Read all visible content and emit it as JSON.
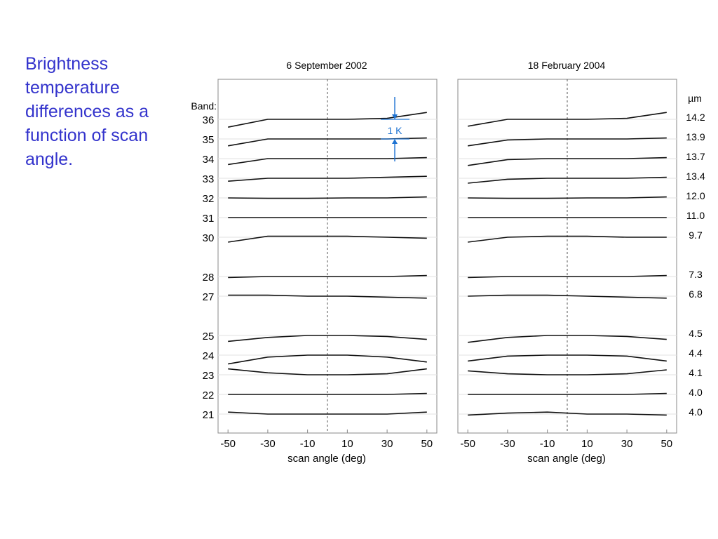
{
  "slide": {
    "title": "Brightness temperature differences as a function of scan angle."
  },
  "chart_data": {
    "type": "line",
    "band_header": "Band:",
    "wavelength_header": "µm",
    "xlabel": "scan angle (deg)",
    "xlim": [
      -55,
      55
    ],
    "xticks": [
      -50,
      -30,
      -10,
      10,
      30,
      50
    ],
    "reference_line_x": 0,
    "scale_bar": {
      "label": "1 K",
      "color": "#1e73d2"
    },
    "bands": [
      {
        "band": "36",
        "wavelength": "14.2"
      },
      {
        "band": "35",
        "wavelength": "13.9"
      },
      {
        "band": "34",
        "wavelength": "13.7"
      },
      {
        "band": "33",
        "wavelength": "13.4"
      },
      {
        "band": "32",
        "wavelength": "12.0"
      },
      {
        "band": "31",
        "wavelength": "11.0"
      },
      {
        "band": "30",
        "wavelength": "9.7"
      },
      {
        "band": "28",
        "wavelength": "7.3"
      },
      {
        "band": "27",
        "wavelength": "6.8"
      },
      {
        "band": "25",
        "wavelength": "4.5"
      },
      {
        "band": "24",
        "wavelength": "4.4"
      },
      {
        "band": "23",
        "wavelength": "4.1"
      },
      {
        "band": "22",
        "wavelength": "4.0"
      },
      {
        "band": "21",
        "wavelength": "4.0"
      }
    ],
    "panels": [
      {
        "title": "6 September 2002",
        "series": [
          {
            "band": "36",
            "x": [
              -50,
              -30,
              -10,
              10,
              30,
              50
            ],
            "y": [
              -0.4,
              0.0,
              0.0,
              0.0,
              0.05,
              0.35
            ]
          },
          {
            "band": "35",
            "x": [
              -50,
              -30,
              -10,
              10,
              30,
              50
            ],
            "y": [
              -0.35,
              0.0,
              0.0,
              0.0,
              0.0,
              0.05
            ]
          },
          {
            "band": "34",
            "x": [
              -50,
              -30,
              -10,
              10,
              30,
              50
            ],
            "y": [
              -0.3,
              0.0,
              0.0,
              0.0,
              0.0,
              0.05
            ]
          },
          {
            "band": "33",
            "x": [
              -50,
              -30,
              -10,
              10,
              30,
              50
            ],
            "y": [
              -0.15,
              0.0,
              0.0,
              0.0,
              0.05,
              0.1
            ]
          },
          {
            "band": "32",
            "x": [
              -50,
              -30,
              -10,
              10,
              30,
              50
            ],
            "y": [
              0.0,
              -0.02,
              -0.02,
              0.0,
              0.0,
              0.05
            ]
          },
          {
            "band": "31",
            "x": [
              -50,
              -30,
              -10,
              10,
              30,
              50
            ],
            "y": [
              0.0,
              0.0,
              0.0,
              0.0,
              0.0,
              0.0
            ]
          },
          {
            "band": "30",
            "x": [
              -50,
              -30,
              -10,
              10,
              30,
              50
            ],
            "y": [
              -0.25,
              0.05,
              0.05,
              0.05,
              0.0,
              -0.05
            ]
          },
          {
            "band": "28",
            "x": [
              -50,
              -30,
              -10,
              10,
              30,
              50
            ],
            "y": [
              -0.05,
              0.0,
              0.0,
              0.0,
              0.0,
              0.05
            ]
          },
          {
            "band": "27",
            "x": [
              -50,
              -30,
              -10,
              10,
              30,
              50
            ],
            "y": [
              0.05,
              0.05,
              0.0,
              0.0,
              -0.05,
              -0.1
            ]
          },
          {
            "band": "25",
            "x": [
              -50,
              -30,
              -10,
              10,
              30,
              50
            ],
            "y": [
              -0.3,
              -0.1,
              0.0,
              0.0,
              -0.05,
              -0.2
            ]
          },
          {
            "band": "24",
            "x": [
              -50,
              -30,
              -10,
              10,
              30,
              50
            ],
            "y": [
              -0.45,
              -0.1,
              0.0,
              0.0,
              -0.1,
              -0.35
            ]
          },
          {
            "band": "23",
            "x": [
              -50,
              -30,
              -10,
              10,
              30,
              50
            ],
            "y": [
              0.3,
              0.1,
              0.0,
              0.0,
              0.05,
              0.3
            ]
          },
          {
            "band": "22",
            "x": [
              -50,
              -30,
              -10,
              10,
              30,
              50
            ],
            "y": [
              0.0,
              0.0,
              0.0,
              0.0,
              0.0,
              0.05
            ]
          },
          {
            "band": "21",
            "x": [
              -50,
              -30,
              -10,
              10,
              30,
              50
            ],
            "y": [
              0.1,
              0.0,
              0.0,
              0.0,
              0.0,
              0.1
            ]
          }
        ]
      },
      {
        "title": "18 February 2004",
        "series": [
          {
            "band": "36",
            "x": [
              -50,
              -30,
              -10,
              10,
              30,
              50
            ],
            "y": [
              -0.35,
              0.0,
              0.0,
              0.0,
              0.05,
              0.35
            ]
          },
          {
            "band": "35",
            "x": [
              -50,
              -30,
              -10,
              10,
              30,
              50
            ],
            "y": [
              -0.35,
              -0.05,
              0.0,
              0.0,
              0.0,
              0.05
            ]
          },
          {
            "band": "34",
            "x": [
              -50,
              -30,
              -10,
              10,
              30,
              50
            ],
            "y": [
              -0.35,
              -0.05,
              0.0,
              0.0,
              0.0,
              0.05
            ]
          },
          {
            "band": "33",
            "x": [
              -50,
              -30,
              -10,
              10,
              30,
              50
            ],
            "y": [
              -0.25,
              -0.05,
              0.0,
              0.0,
              0.0,
              0.05
            ]
          },
          {
            "band": "32",
            "x": [
              -50,
              -30,
              -10,
              10,
              30,
              50
            ],
            "y": [
              0.0,
              -0.02,
              -0.02,
              0.0,
              0.0,
              0.05
            ]
          },
          {
            "band": "31",
            "x": [
              -50,
              -30,
              -10,
              10,
              30,
              50
            ],
            "y": [
              0.0,
              0.0,
              0.0,
              0.0,
              0.0,
              0.0
            ]
          },
          {
            "band": "30",
            "x": [
              -50,
              -30,
              -10,
              10,
              30,
              50
            ],
            "y": [
              -0.25,
              0.0,
              0.05,
              0.05,
              0.0,
              0.0
            ]
          },
          {
            "band": "28",
            "x": [
              -50,
              -30,
              -10,
              10,
              30,
              50
            ],
            "y": [
              -0.05,
              0.0,
              0.0,
              0.0,
              0.0,
              0.05
            ]
          },
          {
            "band": "27",
            "x": [
              -50,
              -30,
              -10,
              10,
              30,
              50
            ],
            "y": [
              0.0,
              0.05,
              0.05,
              0.0,
              -0.05,
              -0.1
            ]
          },
          {
            "band": "25",
            "x": [
              -50,
              -30,
              -10,
              10,
              30,
              50
            ],
            "y": [
              -0.35,
              -0.1,
              0.0,
              0.0,
              -0.05,
              -0.2
            ]
          },
          {
            "band": "24",
            "x": [
              -50,
              -30,
              -10,
              10,
              30,
              50
            ],
            "y": [
              -0.3,
              -0.05,
              0.0,
              0.0,
              -0.05,
              -0.3
            ]
          },
          {
            "band": "23",
            "x": [
              -50,
              -30,
              -10,
              10,
              30,
              50
            ],
            "y": [
              0.2,
              0.05,
              0.0,
              0.0,
              0.05,
              0.25
            ]
          },
          {
            "band": "22",
            "x": [
              -50,
              -30,
              -10,
              10,
              30,
              50
            ],
            "y": [
              0.0,
              0.0,
              0.0,
              0.0,
              0.0,
              0.05
            ]
          },
          {
            "band": "21",
            "x": [
              -50,
              -30,
              -10,
              10,
              30,
              50
            ],
            "y": [
              -0.05,
              0.05,
              0.1,
              0.0,
              0.0,
              -0.05
            ]
          }
        ]
      }
    ]
  }
}
